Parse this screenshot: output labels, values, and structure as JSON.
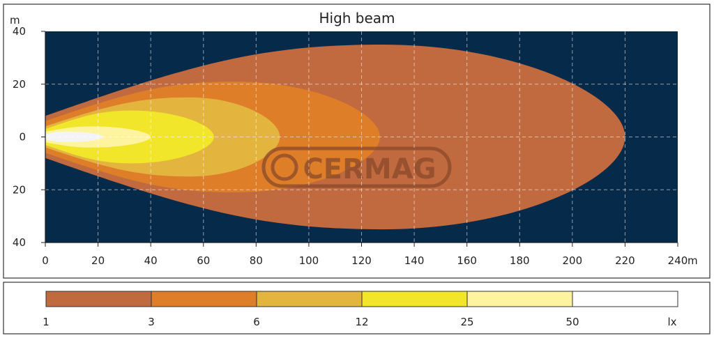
{
  "chart_data": {
    "type": "area",
    "title": "High beam",
    "xlabel": "",
    "ylabel": "",
    "x_unit": "m",
    "y_unit": "m",
    "xlim": [
      0,
      240
    ],
    "ylim": [
      -40,
      40
    ],
    "x_ticks": [
      "0",
      "20",
      "40",
      "60",
      "80",
      "100",
      "120",
      "140",
      "160",
      "180",
      "200",
      "220",
      "240"
    ],
    "y_ticks": [
      "40",
      "20",
      "0",
      "20",
      "40"
    ],
    "grid": true,
    "background_color": "#062a4a",
    "watermark": "CERMAG",
    "series": [
      {
        "name": "1",
        "color": "#c1693f",
        "x_reach": 220,
        "half_width": 35,
        "x_peak": 128,
        "half_width_at_origin": 8
      },
      {
        "name": "3",
        "color": "#de7e28",
        "x_reach": 127,
        "half_width": 21,
        "x_peak": 72,
        "half_width_at_origin": 6
      },
      {
        "name": "6",
        "color": "#e3b53f",
        "x_reach": 89,
        "half_width": 15,
        "x_peak": 55,
        "half_width_at_origin": 4
      },
      {
        "name": "12",
        "color": "#f1e62a",
        "x_reach": 64,
        "half_width": 10,
        "x_peak": 33,
        "half_width_at_origin": 3
      },
      {
        "name": "25",
        "color": "#fef4a0",
        "x_reach": 40,
        "half_width": 4,
        "x_peak": 18,
        "half_width_at_origin": 2
      },
      {
        "name": "50",
        "color": "#f4f4f6",
        "x_reach": 22,
        "half_width": 2,
        "x_peak": 8,
        "half_width_at_origin": 1
      }
    ],
    "legend": {
      "placement": "bottom",
      "unit": "lx",
      "labels": [
        "1",
        "3",
        "6",
        "12",
        "25",
        "50"
      ],
      "colors": [
        "#c1693f",
        "#de7e28",
        "#e3b53f",
        "#f1e62a",
        "#fef4a0",
        "#ffffff"
      ]
    }
  }
}
